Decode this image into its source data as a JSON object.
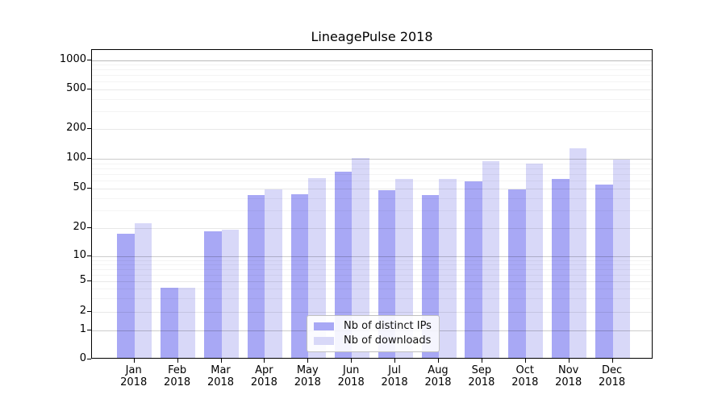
{
  "title": "LineagePulse 2018",
  "chart_data": {
    "type": "bar",
    "title": "LineagePulse 2018",
    "categories": [
      "Jan",
      "Feb",
      "Mar",
      "Apr",
      "May",
      "Jun",
      "Jul",
      "Aug",
      "Sep",
      "Oct",
      "Nov",
      "Dec"
    ],
    "year": "2018",
    "series": [
      {
        "name": "Nb of distinct IPs",
        "color": "#a8a8f5",
        "values": [
          17,
          4,
          18,
          42,
          43,
          73,
          47,
          42,
          58,
          48,
          61,
          54
        ]
      },
      {
        "name": "Nb of downloads",
        "color": "#d8d8f8",
        "values": [
          22,
          4,
          19,
          48,
          63,
          100,
          62,
          62,
          93,
          87,
          126,
          96
        ]
      }
    ],
    "xlabel": "",
    "ylabel": "",
    "yscale": "symlog",
    "yticks": [
      0,
      1,
      2,
      5,
      10,
      20,
      50,
      100,
      200,
      500,
      1000
    ],
    "ylim": [
      0,
      1300
    ],
    "grid": true,
    "legend_position": "lower center"
  }
}
